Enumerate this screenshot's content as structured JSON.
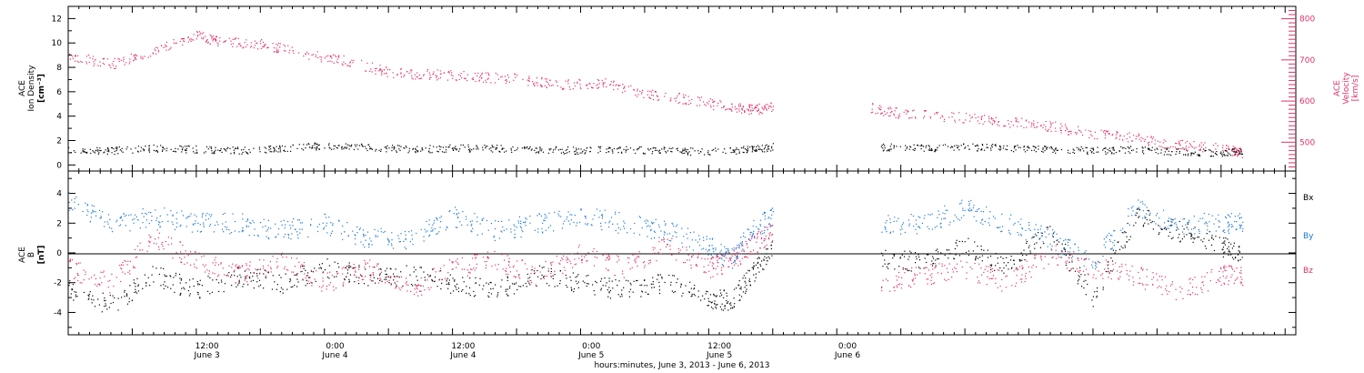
{
  "colors": {
    "black": "#000000",
    "blue": "#1f78d1",
    "pink": "#e0326b"
  },
  "chart_data": [
    {
      "type": "scatter",
      "panel": "top",
      "xlabel": "hours:minutes, June  3, 2013 - June  6, 2013",
      "x_ticks": [
        {
          "time": "12:00",
          "date": "June 3"
        },
        {
          "time": "0:00",
          "date": "June 4"
        },
        {
          "time": "12:00",
          "date": "June 4"
        },
        {
          "time": "0:00",
          "date": "June 5"
        },
        {
          "time": "12:00",
          "date": "June 5"
        },
        {
          "time": "0:00",
          "date": "June 6"
        }
      ],
      "ylabel_left": [
        "ACE",
        "Ion Density"
      ],
      "ylabel_left_unit": "[cm⁻³]",
      "ylim_left": [
        -0.5,
        13
      ],
      "left_ticks": [
        "0",
        "2",
        "4",
        "6",
        "8",
        "10",
        "12"
      ],
      "ylabel_right": [
        "ACE",
        "Velocity"
      ],
      "ylabel_right_unit": "[km/s]",
      "ylim_right": [
        430,
        830
      ],
      "right_ticks": [
        "500",
        "600",
        "700",
        "800"
      ],
      "series": [
        {
          "name": "Ion Density",
          "axis": "left",
          "color": "black",
          "points": [
            [
              0,
              1.2
            ],
            [
              4,
              1.2
            ],
            [
              8,
              1.4
            ],
            [
              12,
              1.3
            ],
            [
              16,
              1.2
            ],
            [
              20,
              1.4
            ],
            [
              24,
              1.6
            ],
            [
              28,
              1.5
            ],
            [
              32,
              1.3
            ],
            [
              36,
              1.4
            ],
            [
              40,
              1.4
            ],
            [
              44,
              1.3
            ],
            [
              48,
              1.2
            ],
            [
              52,
              1.3
            ],
            [
              56,
              1.2
            ],
            [
              60,
              1.1
            ],
            [
              64,
              1.3
            ],
            [
              66,
              1.5
            ],
            [
              76,
              1.5
            ],
            [
              80,
              1.4
            ],
            [
              84,
              1.5
            ],
            [
              88,
              1.4
            ],
            [
              92,
              1.3
            ],
            [
              96,
              1.2
            ],
            [
              100,
              1.3
            ],
            [
              104,
              1.1
            ],
            [
              108,
              1.0
            ],
            [
              110,
              1.2
            ]
          ]
        },
        {
          "name": "Velocity",
          "axis": "right",
          "color": "pink",
          "points": [
            [
              0,
              710
            ],
            [
              4,
              690
            ],
            [
              8,
              720
            ],
            [
              12,
              760
            ],
            [
              14,
              745
            ],
            [
              18,
              740
            ],
            [
              22,
              715
            ],
            [
              26,
              700
            ],
            [
              30,
              670
            ],
            [
              34,
              665
            ],
            [
              38,
              660
            ],
            [
              42,
              655
            ],
            [
              46,
              640
            ],
            [
              50,
              645
            ],
            [
              54,
              620
            ],
            [
              58,
              605
            ],
            [
              62,
              585
            ],
            [
              64,
              580
            ],
            [
              66,
              585
            ],
            [
              75,
              585
            ],
            [
              78,
              570
            ],
            [
              84,
              560
            ],
            [
              88,
              550
            ],
            [
              92,
              540
            ],
            [
              96,
              520
            ],
            [
              100,
              510
            ],
            [
              104,
              495
            ],
            [
              108,
              485
            ],
            [
              110,
              475
            ]
          ]
        }
      ]
    },
    {
      "type": "scatter",
      "panel": "bottom",
      "ylabel": [
        "ACE",
        "B"
      ],
      "ylabel_unit": "[nT]",
      "ylim": [
        -5.5,
        5.5
      ],
      "y_ticks": [
        "-4",
        "-2",
        "0",
        "2",
        "4"
      ],
      "legend": [
        "Bx",
        "By",
        "Bz"
      ],
      "legend_placement": "right",
      "series": [
        {
          "name": "Bx",
          "color": "black",
          "points": [
            [
              0,
              -2.5
            ],
            [
              4,
              -3.5
            ],
            [
              8,
              -1.5
            ],
            [
              12,
              -2.5
            ],
            [
              16,
              -1.5
            ],
            [
              20,
              -2.0
            ],
            [
              24,
              -1.0
            ],
            [
              28,
              -1.5
            ],
            [
              32,
              -1.5
            ],
            [
              36,
              -2.0
            ],
            [
              40,
              -2.5
            ],
            [
              44,
              -1.5
            ],
            [
              48,
              -2.0
            ],
            [
              52,
              -2.5
            ],
            [
              56,
              -2.0
            ],
            [
              60,
              -3.0
            ],
            [
              62,
              -3.2
            ],
            [
              64,
              -1.5
            ],
            [
              66,
              0.5
            ],
            [
              76,
              -0.5
            ],
            [
              80,
              -0.5
            ],
            [
              84,
              0.5
            ],
            [
              88,
              -1.0
            ],
            [
              92,
              1.5
            ],
            [
              96,
              -3.0
            ],
            [
              100,
              2.5
            ],
            [
              104,
              1.5
            ],
            [
              108,
              0.5
            ],
            [
              110,
              0.0
            ]
          ]
        },
        {
          "name": "By",
          "color": "blue",
          "points": [
            [
              0,
              3.5
            ],
            [
              4,
              2.0
            ],
            [
              8,
              2.5
            ],
            [
              12,
              2.0
            ],
            [
              16,
              2.0
            ],
            [
              20,
              1.5
            ],
            [
              24,
              2.0
            ],
            [
              28,
              1.0
            ],
            [
              32,
              1.0
            ],
            [
              36,
              2.5
            ],
            [
              40,
              1.5
            ],
            [
              44,
              2.0
            ],
            [
              48,
              2.5
            ],
            [
              52,
              2.0
            ],
            [
              56,
              1.5
            ],
            [
              60,
              0.5
            ],
            [
              62,
              -0.5
            ],
            [
              64,
              1.5
            ],
            [
              66,
              2.5
            ],
            [
              76,
              2.0
            ],
            [
              80,
              2.0
            ],
            [
              84,
              3.0
            ],
            [
              88,
              2.0
            ],
            [
              92,
              1.0
            ],
            [
              96,
              -0.5
            ],
            [
              100,
              3.0
            ],
            [
              104,
              2.0
            ],
            [
              108,
              2.0
            ],
            [
              110,
              2.0
            ]
          ]
        },
        {
          "name": "Bz",
          "color": "pink",
          "points": [
            [
              0,
              -1.0
            ],
            [
              4,
              -2.0
            ],
            [
              8,
              1.0
            ],
            [
              12,
              -0.5
            ],
            [
              16,
              -1.5
            ],
            [
              20,
              -0.5
            ],
            [
              24,
              -2.0
            ],
            [
              28,
              -1.0
            ],
            [
              32,
              -2.5
            ],
            [
              36,
              -1.0
            ],
            [
              40,
              -0.5
            ],
            [
              44,
              -1.5
            ],
            [
              48,
              0.0
            ],
            [
              52,
              -1.0
            ],
            [
              56,
              0.5
            ],
            [
              60,
              -1.0
            ],
            [
              62,
              -0.5
            ],
            [
              64,
              0.5
            ],
            [
              66,
              1.5
            ],
            [
              76,
              -2.0
            ],
            [
              80,
              -1.5
            ],
            [
              84,
              -1.0
            ],
            [
              88,
              -2.0
            ],
            [
              92,
              0.0
            ],
            [
              96,
              -1.0
            ],
            [
              100,
              -1.5
            ],
            [
              104,
              -2.5
            ],
            [
              108,
              -1.5
            ],
            [
              110,
              -1.5
            ]
          ]
        }
      ]
    }
  ]
}
